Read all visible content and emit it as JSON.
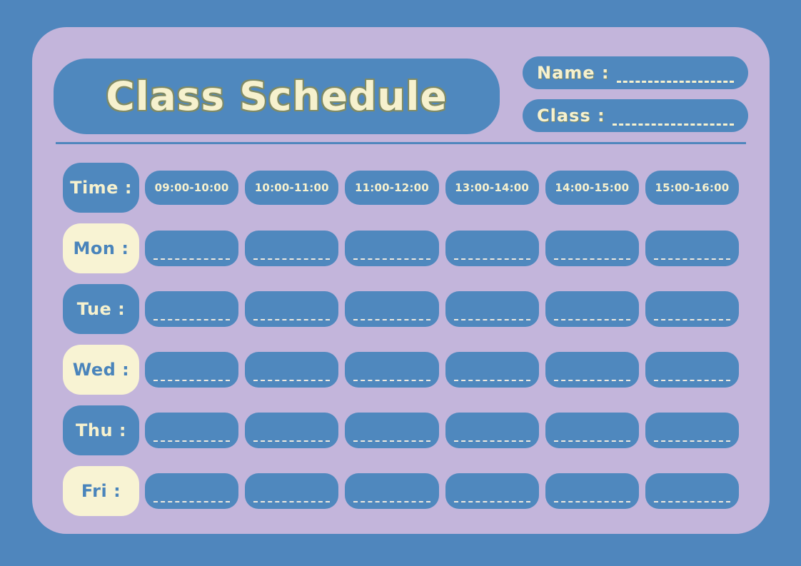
{
  "colors": {
    "outer_background": "#4F86BD",
    "card_background": "#C3B5DB",
    "pill_blue": "#4F88BE",
    "pill_cream": "#F8F3D3",
    "text_cream": "#F6F1CE",
    "text_blue": "#4A84BB",
    "title_outline": "#7F8A65",
    "cell_dash": "#EDE9DE"
  },
  "header": {
    "title": "Class Schedule",
    "name_label": "Name :",
    "class_label": "Class :"
  },
  "schedule": {
    "time_label": "Time :",
    "time_slots": [
      "09:00-10:00",
      "10:00-11:00",
      "11:00-12:00",
      "13:00-14:00",
      "14:00-15:00",
      "15:00-16:00"
    ],
    "days": [
      {
        "label": "Mon :"
      },
      {
        "label": "Tue :"
      },
      {
        "label": "Wed :"
      },
      {
        "label": "Thu :"
      },
      {
        "label": "Fri :"
      }
    ]
  }
}
